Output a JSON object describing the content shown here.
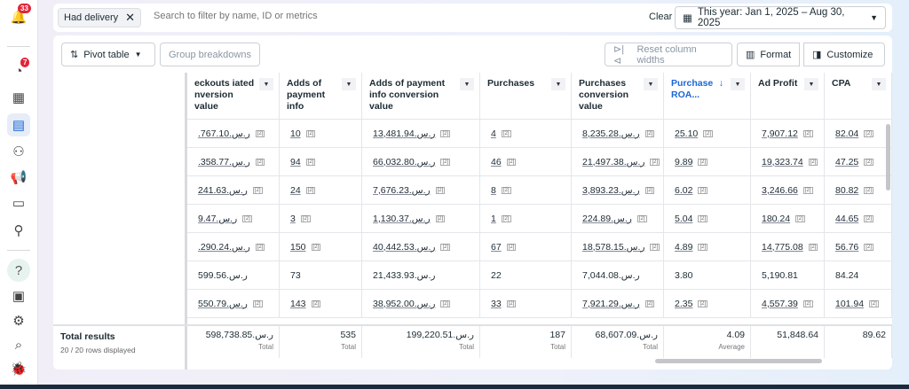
{
  "sidebar": {
    "notifications_badge": "33",
    "alerts_badge": "7",
    "help_label": "?"
  },
  "filter": {
    "chip_label": "Had delivery",
    "search_placeholder": "Search to filter by name, ID or metrics",
    "clear_label": "Clear",
    "date_range": "This year: Jan 1, 2025 – Aug 30, 2025"
  },
  "toolbar": {
    "pivot_label": "Pivot table",
    "group_label": "Group breakdowns",
    "reset_label": "Reset column widths",
    "format_label": "Format",
    "customize_label": "Customize"
  },
  "columns": [
    {
      "label": "eckouts iated nversion value"
    },
    {
      "label": "Adds of payment info"
    },
    {
      "label": "Adds of payment info conversion value"
    },
    {
      "label": "Purchases"
    },
    {
      "label": "Purchases conversion value"
    },
    {
      "label": "Purchase ROA...",
      "sort": "↓"
    },
    {
      "label": "Ad Profit"
    },
    {
      "label": "CPA"
    }
  ],
  "rows": [
    {
      "linked": true,
      "cells": [
        ".767.10.ر.س",
        "10",
        "13,481.94.ر.س",
        "4",
        "8,235.28.ر.س",
        "25.10",
        "7,907.12",
        "82.04"
      ]
    },
    {
      "linked": true,
      "cells": [
        ".358.77.ر.س",
        "94",
        "66,032.80.ر.س",
        "46",
        "21,497.38.ر.س",
        "9.89",
        "19,323.74",
        "47.25"
      ]
    },
    {
      "linked": true,
      "cells": [
        "241.63.ر.س",
        "24",
        "7,676.23.ر.س",
        "8",
        "3,893.23.ر.س",
        "6.02",
        "3,246.66",
        "80.82"
      ]
    },
    {
      "linked": true,
      "cells": [
        "9.47.ر.س",
        "3",
        "1,130.37.ر.س",
        "1",
        "224.89.ر.س",
        "5.04",
        "180.24",
        "44.65"
      ]
    },
    {
      "linked": true,
      "cells": [
        ".290.24.ر.س",
        "150",
        "40,442.53.ر.س",
        "67",
        "18,578.15.ر.س",
        "4.89",
        "14,775.08",
        "56.76"
      ]
    },
    {
      "linked": false,
      "cells": [
        "599.56.ر.س",
        "73",
        "21,433.93.ر.س",
        "22",
        "7,044.08.ر.س",
        "3.80",
        "5,190.81",
        "84.24"
      ]
    },
    {
      "linked": true,
      "cells": [
        "550.79.ر.س",
        "143",
        "38,952.00.ر.س",
        "33",
        "7,921.29.ر.س",
        "2.35",
        "4,557.39",
        "101.94"
      ]
    }
  ],
  "ref_marker": "[2]",
  "totals": {
    "title": "Total results",
    "subtitle": "20 / 20 rows displayed",
    "cells": [
      {
        "value": "598,738.85.ر.س",
        "label": "Total"
      },
      {
        "value": "535",
        "label": "Total"
      },
      {
        "value": "199,220.51.ر.س",
        "label": "Total"
      },
      {
        "value": "187",
        "label": "Total"
      },
      {
        "value": "68,607.09.ر.س",
        "label": "Total"
      },
      {
        "value": "4.09",
        "label": "Average"
      },
      {
        "value": "51,848.64",
        "label": ""
      },
      {
        "value": "89.62",
        "label": ""
      }
    ]
  }
}
